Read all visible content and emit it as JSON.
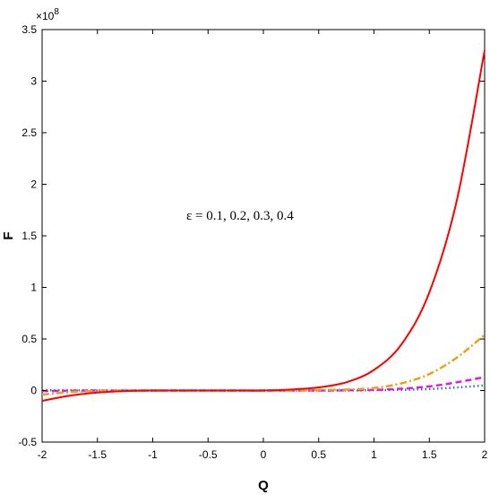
{
  "chart_data": {
    "type": "line",
    "title": "",
    "xlabel": "Q",
    "ylabel": "F",
    "y_multiplier_label": "×10",
    "y_multiplier_exponent": "8",
    "annotation": "ε = 0.1, 0.2, 0.3, 0.4",
    "xlim": [
      -2,
      2
    ],
    "ylim": [
      -0.5,
      3.5
    ],
    "y_scale_factor": 100000000,
    "grid": false,
    "legend": "none",
    "x_ticks": [
      -2,
      -1.5,
      -1,
      -0.5,
      0,
      0.5,
      1,
      1.5,
      2
    ],
    "x_tick_labels": [
      "-2",
      "-1.5",
      "-1",
      "-0.5",
      "0",
      "0.5",
      "1",
      "1.5",
      "2"
    ],
    "y_ticks": [
      -0.5,
      0,
      0.5,
      1,
      1.5,
      2,
      2.5,
      3,
      3.5
    ],
    "y_tick_labels": [
      "-0.5",
      "0",
      "0.5",
      "1",
      "1.5",
      "2",
      "2.5",
      "3",
      "3.5"
    ],
    "x": [
      -2,
      -1.75,
      -1.5,
      -1.25,
      -1,
      -0.75,
      -0.5,
      -0.25,
      0,
      0.25,
      0.5,
      0.75,
      1,
      1.25,
      1.5,
      1.75,
      2
    ],
    "series": [
      {
        "color": "#1f77b4",
        "dash": "dot",
        "values": [
          0.003,
          0.002,
          0.001,
          0.0,
          0.0,
          0.0,
          0.0,
          0.0,
          0.0,
          0.0,
          0.0,
          0.001,
          0.003,
          0.007,
          0.015,
          0.03,
          0.05
        ]
      },
      {
        "color": "#e41ae4",
        "dash": "dash",
        "values": [
          -0.005,
          -0.002,
          0.0,
          0.0,
          0.0,
          0.0,
          0.0,
          0.0,
          0.0,
          0.0,
          0.0,
          0.002,
          0.006,
          0.018,
          0.04,
          0.08,
          0.13
        ]
      },
      {
        "color": "#e8a317",
        "dash": "dashdot",
        "values": [
          -0.04,
          -0.015,
          -0.004,
          -0.001,
          0.0,
          0.0,
          0.0,
          0.0,
          0.0,
          0.0,
          0.005,
          0.01,
          0.025,
          0.07,
          0.16,
          0.32,
          0.54
        ]
      },
      {
        "color": "#ff0000",
        "dash": "solid",
        "values": [
          -0.1,
          -0.05,
          -0.02,
          -0.005,
          0.0,
          0.0,
          0.0,
          0.0,
          0.0,
          0.01,
          0.03,
          0.08,
          0.2,
          0.45,
          0.95,
          1.85,
          3.3
        ]
      }
    ]
  }
}
